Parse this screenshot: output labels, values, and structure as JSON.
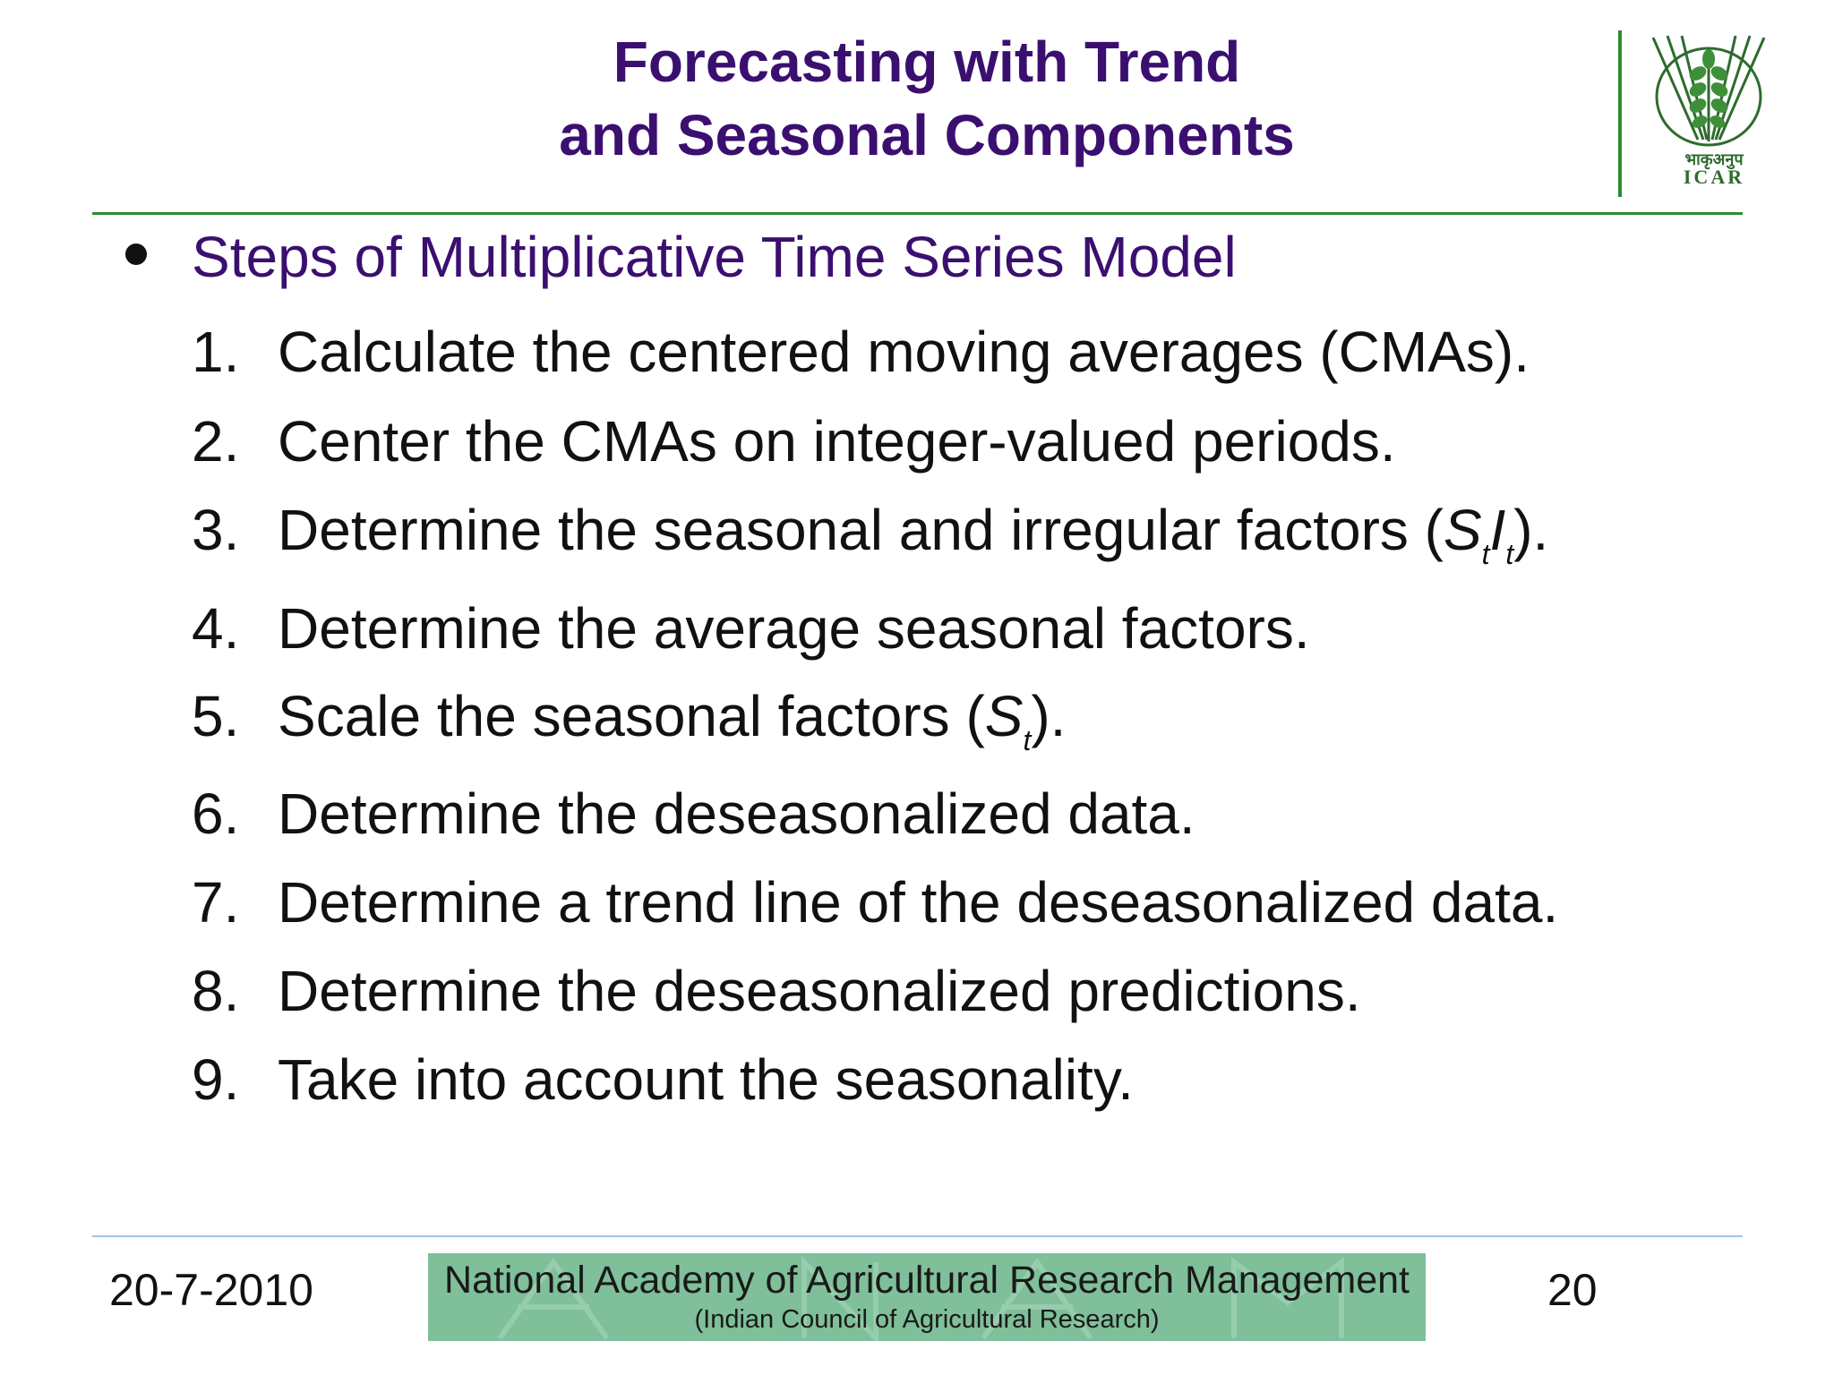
{
  "slide": {
    "title_line1": "Forecasting with Trend",
    "title_line2": "and Seasonal Components"
  },
  "logo": {
    "hindi": "भाकृअनुप",
    "abbr": "ICAR"
  },
  "section": {
    "heading": "Steps of Multiplicative Time Series Model"
  },
  "steps": [
    {
      "num": "1.",
      "text": "Calculate the centered moving averages (CMAs)."
    },
    {
      "num": "2.",
      "text": "Center the CMAs on integer-valued periods."
    },
    {
      "num": "3.",
      "pre": "Determine the seasonal and irregular factors (",
      "s": "S",
      "s_sub": "t",
      "i": "I",
      "i_sub": "t",
      "post": ")."
    },
    {
      "num": "4.",
      "text": "Determine the average seasonal factors."
    },
    {
      "num": "5.",
      "pre": "Scale the seasonal factors (",
      "s": "S",
      "s_sub": "t",
      "post": ")."
    },
    {
      "num": "6.",
      "text": "Determine the deseasonalized data."
    },
    {
      "num": "7.",
      "text": "Determine a trend line of the deseasonalized data."
    },
    {
      "num": "8.",
      "text": "Determine the deseasonalized predictions."
    },
    {
      "num": "9.",
      "text": "Take into account the seasonality."
    }
  ],
  "footer": {
    "date": "20-7-2010",
    "page_number": "20",
    "org_name": "National Academy of Agricultural Research Management",
    "org_sub": "(Indian Council of Agricultural Research)"
  }
}
